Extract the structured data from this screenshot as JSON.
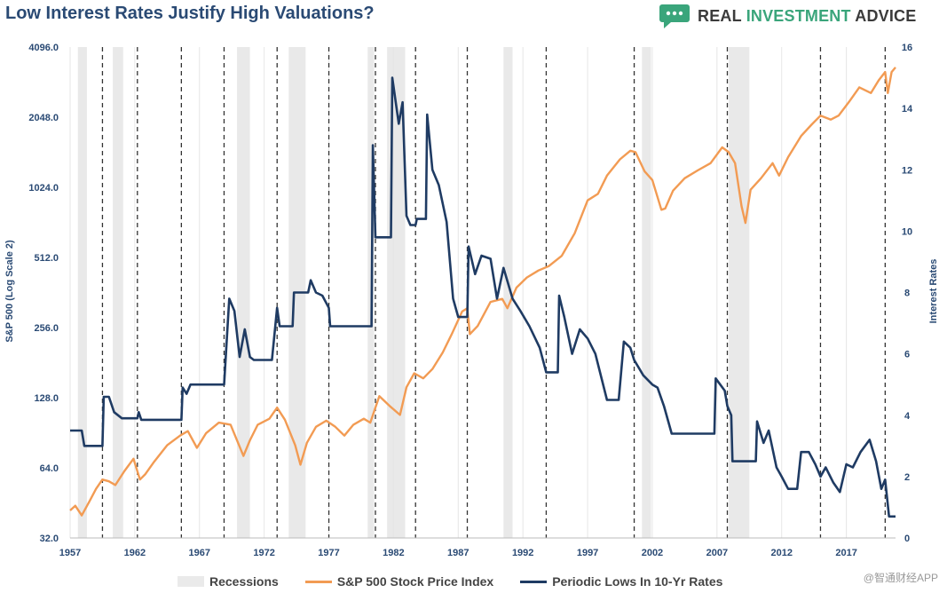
{
  "header": {
    "title": "Low Interest Rates Justify High Valuations?",
    "brand_real": "REAL",
    "brand_investment": "INVESTMENT",
    "brand_advice": "ADVICE",
    "brand_icon": "chat-bubble-icon",
    "brand_color": "#3aa57b"
  },
  "watermark": "@智通财经APP",
  "colors": {
    "sp500": "#f29b53",
    "rates": "#1f3b63",
    "recession": "#e9e9e9",
    "axis_text": "#2a4a74",
    "marker": "#333333"
  },
  "chart_data": {
    "type": "line",
    "title": "Low Interest Rates Justify High Valuations?",
    "xlabel": "",
    "ylabel_left": "S&P 500 (Log Scale 2)",
    "ylabel_right": "Interest Rates",
    "x_ticks": [
      "1957",
      "1962",
      "1967",
      "1972",
      "1977",
      "1982",
      "1987",
      "1992",
      "1997",
      "2002",
      "2007",
      "2012",
      "2017"
    ],
    "y_left_ticks": [
      "32.0",
      "64.0",
      "128.0",
      "256.0",
      "512.0",
      "1024.0",
      "2048.0",
      "4096.0"
    ],
    "y_left_range": [
      32,
      4096
    ],
    "y_right_ticks": [
      "0",
      "2",
      "4",
      "6",
      "8",
      "10",
      "12",
      "14",
      "16"
    ],
    "y_right_range": [
      0,
      16
    ],
    "x_range": [
      1957,
      2020.8
    ],
    "legend": {
      "recessions": "Recessions",
      "sp500": "S&P 500 Stock Price Index",
      "rates": "Periodic Lows In 10-Yr Rates"
    },
    "recessions": [
      [
        1957.6,
        1958.3
      ],
      [
        1960.3,
        1961.1
      ],
      [
        1969.9,
        1970.9
      ],
      [
        1973.9,
        1975.2
      ],
      [
        1980.0,
        1980.5
      ],
      [
        1981.5,
        1982.9
      ],
      [
        1990.5,
        1991.2
      ],
      [
        2001.2,
        2001.9
      ],
      [
        2007.9,
        2009.5
      ]
    ],
    "markers": [
      1959.5,
      1962.2,
      1965.6,
      1968.9,
      1973.0,
      1977.0,
      1980.6,
      1983.7,
      1987.7,
      1993.8,
      2000.6,
      2007.8,
      2015.0,
      2020.0
    ],
    "series": [
      {
        "name": "S&P 500 Stock Price Index",
        "points": [
          [
            1957,
            42
          ],
          [
            1957.4,
            44
          ],
          [
            1957.9,
            40
          ],
          [
            1958.5,
            46
          ],
          [
            1959,
            52
          ],
          [
            1959.5,
            57
          ],
          [
            1960,
            56
          ],
          [
            1960.5,
            54
          ],
          [
            1961.2,
            62
          ],
          [
            1961.9,
            70
          ],
          [
            1962.4,
            57
          ],
          [
            1962.8,
            60
          ],
          [
            1963.5,
            68
          ],
          [
            1964.5,
            80
          ],
          [
            1965.5,
            88
          ],
          [
            1966.1,
            92
          ],
          [
            1966.8,
            78
          ],
          [
            1967.5,
            90
          ],
          [
            1968.5,
            100
          ],
          [
            1969.4,
            98
          ],
          [
            1970.4,
            72
          ],
          [
            1970.9,
            84
          ],
          [
            1971.5,
            98
          ],
          [
            1972.4,
            104
          ],
          [
            1973.0,
            116
          ],
          [
            1973.6,
            103
          ],
          [
            1974.4,
            80
          ],
          [
            1974.8,
            66
          ],
          [
            1975.3,
            82
          ],
          [
            1976.0,
            96
          ],
          [
            1976.8,
            102
          ],
          [
            1977.5,
            96
          ],
          [
            1978.2,
            88
          ],
          [
            1978.9,
            98
          ],
          [
            1979.7,
            104
          ],
          [
            1980.2,
            100
          ],
          [
            1980.9,
            130
          ],
          [
            1981.7,
            118
          ],
          [
            1982.5,
            108
          ],
          [
            1983.0,
            142
          ],
          [
            1983.6,
            163
          ],
          [
            1984.3,
            155
          ],
          [
            1985.0,
            170
          ],
          [
            1985.8,
            200
          ],
          [
            1986.5,
            240
          ],
          [
            1987.3,
            300
          ],
          [
            1987.7,
            310
          ],
          [
            1987.9,
            240
          ],
          [
            1988.5,
            260
          ],
          [
            1989.5,
            330
          ],
          [
            1990.4,
            340
          ],
          [
            1990.8,
            310
          ],
          [
            1991.5,
            380
          ],
          [
            1992.3,
            420
          ],
          [
            1993.2,
            450
          ],
          [
            1994.0,
            470
          ],
          [
            1995.0,
            520
          ],
          [
            1996.0,
            650
          ],
          [
            1997.0,
            900
          ],
          [
            1997.8,
            960
          ],
          [
            1998.5,
            1150
          ],
          [
            1999.5,
            1350
          ],
          [
            2000.3,
            1470
          ],
          [
            2000.7,
            1450
          ],
          [
            2001.4,
            1200
          ],
          [
            2002.0,
            1100
          ],
          [
            2002.7,
            820
          ],
          [
            2003.0,
            830
          ],
          [
            2003.6,
            990
          ],
          [
            2004.5,
            1120
          ],
          [
            2005.5,
            1210
          ],
          [
            2006.5,
            1300
          ],
          [
            2007.4,
            1520
          ],
          [
            2007.9,
            1450
          ],
          [
            2008.4,
            1300
          ],
          [
            2008.9,
            850
          ],
          [
            2009.2,
            720
          ],
          [
            2009.6,
            1000
          ],
          [
            2010.4,
            1120
          ],
          [
            2011.3,
            1300
          ],
          [
            2011.8,
            1150
          ],
          [
            2012.5,
            1380
          ],
          [
            2013.5,
            1700
          ],
          [
            2014.3,
            1900
          ],
          [
            2015.0,
            2080
          ],
          [
            2015.8,
            2000
          ],
          [
            2016.4,
            2080
          ],
          [
            2017.2,
            2380
          ],
          [
            2018.0,
            2750
          ],
          [
            2018.9,
            2600
          ],
          [
            2019.5,
            2950
          ],
          [
            2020.0,
            3200
          ],
          [
            2020.2,
            2600
          ],
          [
            2020.5,
            3200
          ],
          [
            2020.8,
            3350
          ]
        ]
      },
      {
        "name": "Periodic Lows In 10-Yr Rates",
        "points": [
          [
            1957,
            3.5
          ],
          [
            1957.9,
            3.5
          ],
          [
            1958.1,
            3.0
          ],
          [
            1959.5,
            3.0
          ],
          [
            1959.6,
            4.6
          ],
          [
            1960.0,
            4.6
          ],
          [
            1960.4,
            4.1
          ],
          [
            1961.0,
            3.9
          ],
          [
            1962.2,
            3.9
          ],
          [
            1962.3,
            4.1
          ],
          [
            1962.5,
            3.85
          ],
          [
            1965.6,
            3.85
          ],
          [
            1965.7,
            4.9
          ],
          [
            1966.0,
            4.7
          ],
          [
            1966.3,
            5.0
          ],
          [
            1968.9,
            5.0
          ],
          [
            1969.3,
            7.8
          ],
          [
            1969.7,
            7.4
          ],
          [
            1970.1,
            5.9
          ],
          [
            1970.5,
            6.8
          ],
          [
            1970.9,
            5.9
          ],
          [
            1971.2,
            5.8
          ],
          [
            1972.6,
            5.8
          ],
          [
            1973.0,
            7.5
          ],
          [
            1973.2,
            6.9
          ],
          [
            1974.2,
            6.9
          ],
          [
            1974.3,
            8.0
          ],
          [
            1975.4,
            8.0
          ],
          [
            1975.6,
            8.4
          ],
          [
            1976.0,
            8.0
          ],
          [
            1976.5,
            7.9
          ],
          [
            1977.0,
            7.5
          ],
          [
            1977.1,
            6.9
          ],
          [
            1980.3,
            6.9
          ],
          [
            1980.4,
            12.8
          ],
          [
            1980.6,
            9.8
          ],
          [
            1981.8,
            9.8
          ],
          [
            1981.9,
            15.0
          ],
          [
            1982.4,
            13.5
          ],
          [
            1982.7,
            14.2
          ],
          [
            1983.0,
            10.5
          ],
          [
            1983.3,
            10.2
          ],
          [
            1983.7,
            10.2
          ],
          [
            1983.8,
            10.4
          ],
          [
            1984.5,
            10.4
          ],
          [
            1984.6,
            13.8
          ],
          [
            1985.0,
            12.0
          ],
          [
            1985.5,
            11.5
          ],
          [
            1986.1,
            10.3
          ],
          [
            1986.6,
            7.8
          ],
          [
            1987.0,
            7.2
          ],
          [
            1987.7,
            7.2
          ],
          [
            1987.8,
            9.5
          ],
          [
            1988.3,
            8.6
          ],
          [
            1988.8,
            9.2
          ],
          [
            1989.5,
            9.1
          ],
          [
            1990.0,
            7.8
          ],
          [
            1990.5,
            8.8
          ],
          [
            1991.2,
            7.8
          ],
          [
            1991.8,
            7.4
          ],
          [
            1992.5,
            6.9
          ],
          [
            1993.3,
            6.2
          ],
          [
            1993.8,
            5.4
          ],
          [
            1994.7,
            5.4
          ],
          [
            1994.8,
            7.9
          ],
          [
            1995.2,
            7.2
          ],
          [
            1995.8,
            6.0
          ],
          [
            1996.4,
            6.8
          ],
          [
            1997.0,
            6.5
          ],
          [
            1997.6,
            6.0
          ],
          [
            1998.5,
            4.5
          ],
          [
            1999.4,
            4.5
          ],
          [
            1999.8,
            6.4
          ],
          [
            2000.3,
            6.2
          ],
          [
            2000.6,
            5.8
          ],
          [
            2001.3,
            5.3
          ],
          [
            2002.0,
            5.0
          ],
          [
            2002.4,
            4.9
          ],
          [
            2002.9,
            4.3
          ],
          [
            2003.5,
            3.4
          ],
          [
            2006.8,
            3.4
          ],
          [
            2006.9,
            5.2
          ],
          [
            2007.6,
            4.8
          ],
          [
            2007.8,
            4.3
          ],
          [
            2008.1,
            4.0
          ],
          [
            2008.2,
            2.5
          ],
          [
            2010.0,
            2.5
          ],
          [
            2010.1,
            3.8
          ],
          [
            2010.6,
            3.1
          ],
          [
            2011.0,
            3.5
          ],
          [
            2011.6,
            2.3
          ],
          [
            2012.0,
            2.0
          ],
          [
            2012.5,
            1.6
          ],
          [
            2013.2,
            1.6
          ],
          [
            2013.5,
            2.8
          ],
          [
            2014.1,
            2.8
          ],
          [
            2014.6,
            2.4
          ],
          [
            2015.0,
            2.0
          ],
          [
            2015.4,
            2.3
          ],
          [
            2016.0,
            1.8
          ],
          [
            2016.5,
            1.5
          ],
          [
            2017.0,
            2.4
          ],
          [
            2017.5,
            2.3
          ],
          [
            2018.1,
            2.8
          ],
          [
            2018.8,
            3.2
          ],
          [
            2019.3,
            2.5
          ],
          [
            2019.7,
            1.6
          ],
          [
            2020.0,
            1.9
          ],
          [
            2020.3,
            0.7
          ],
          [
            2020.8,
            0.7
          ]
        ]
      }
    ]
  }
}
